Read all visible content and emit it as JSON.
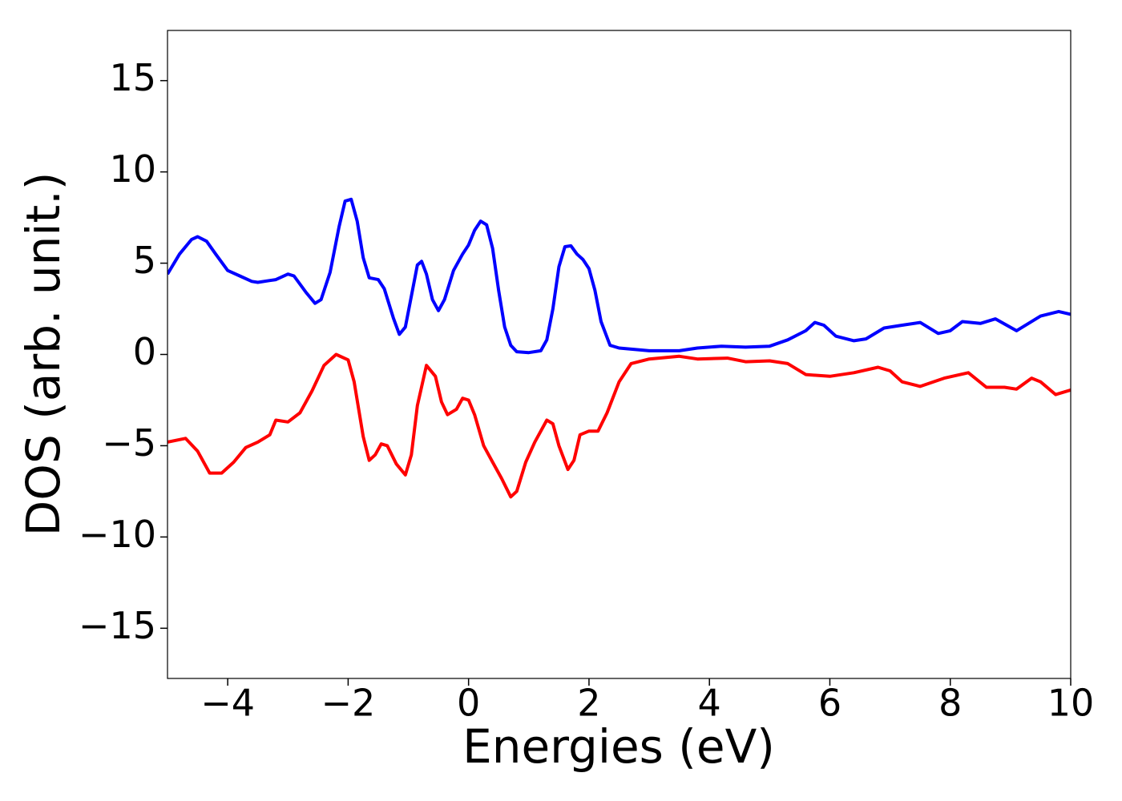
{
  "chart_data": {
    "type": "line",
    "xlabel": "Energies (eV)",
    "ylabel": "DOS (arb. unit.)",
    "xlim": [
      -5,
      10
    ],
    "ylim": [
      -17.75,
      17.75
    ],
    "xticks": [
      {
        "value": -4,
        "label": "−4"
      },
      {
        "value": -2,
        "label": "−2"
      },
      0,
      2,
      4,
      6,
      8,
      10
    ],
    "yticks": [
      {
        "value": -15,
        "label": "−15"
      },
      {
        "value": -10,
        "label": "−10"
      },
      {
        "value": -5,
        "label": "−5"
      },
      0,
      5,
      10,
      15
    ],
    "series": [
      {
        "color": "#0000ff",
        "x": [
          -5,
          -4.8,
          -4.6,
          -4.5,
          -4.35,
          -4.2,
          -4,
          -3.8,
          -3.6,
          -3.5,
          -3.3,
          -3.2,
          -3,
          -2.9,
          -2.7,
          -2.55,
          -2.45,
          -2.3,
          -2.15,
          -2.05,
          -1.95,
          -1.85,
          -1.75,
          -1.65,
          -1.5,
          -1.4,
          -1.25,
          -1.15,
          -1.05,
          -0.95,
          -0.85,
          -0.78,
          -0.7,
          -0.6,
          -0.5,
          -0.4,
          -0.25,
          -0.1,
          0,
          0.1,
          0.2,
          0.3,
          0.4,
          0.5,
          0.6,
          0.7,
          0.8,
          1,
          1.2,
          1.3,
          1.4,
          1.5,
          1.6,
          1.7,
          1.8,
          1.9,
          2,
          2.1,
          2.2,
          2.35,
          2.5,
          3,
          3.5,
          3.8,
          4.2,
          4.6,
          5,
          5.3,
          5.6,
          5.75,
          5.9,
          6.1,
          6.4,
          6.6,
          6.9,
          7.2,
          7.5,
          7.8,
          8,
          8.2,
          8.5,
          8.75,
          9.1,
          9.5,
          9.8,
          10
        ],
        "values": [
          4.4,
          5.5,
          6.3,
          6.45,
          6.2,
          5.5,
          4.6,
          4.3,
          4,
          3.95,
          4.05,
          4.1,
          4.4,
          4.3,
          3.4,
          2.8,
          3,
          4.5,
          7,
          8.4,
          8.5,
          7.3,
          5.3,
          4.2,
          4.1,
          3.6,
          2,
          1.1,
          1.5,
          3.2,
          4.9,
          5.1,
          4.4,
          3,
          2.4,
          3,
          4.6,
          5.5,
          6,
          6.8,
          7.3,
          7.1,
          5.8,
          3.5,
          1.5,
          0.5,
          0.15,
          0.1,
          0.2,
          0.8,
          2.5,
          4.8,
          5.9,
          5.95,
          5.5,
          5.2,
          4.7,
          3.5,
          1.8,
          0.5,
          0.35,
          0.2,
          0.2,
          0.35,
          0.45,
          0.4,
          0.45,
          0.8,
          1.3,
          1.75,
          1.6,
          1,
          0.75,
          0.85,
          1.45,
          1.6,
          1.75,
          1.15,
          1.3,
          1.8,
          1.7,
          1.95,
          1.3,
          2.1,
          2.35,
          2.2
        ]
      },
      {
        "color": "#ff0000",
        "x": [
          -5,
          -4.7,
          -4.5,
          -4.3,
          -4.1,
          -3.9,
          -3.7,
          -3.5,
          -3.3,
          -3.2,
          -3,
          -2.8,
          -2.6,
          -2.4,
          -2.2,
          -2,
          -1.9,
          -1.75,
          -1.65,
          -1.55,
          -1.45,
          -1.35,
          -1.2,
          -1.05,
          -0.95,
          -0.85,
          -0.7,
          -0.55,
          -0.45,
          -0.35,
          -0.2,
          -0.1,
          0,
          0.1,
          0.25,
          0.4,
          0.55,
          0.7,
          0.8,
          0.95,
          1.1,
          1.3,
          1.4,
          1.5,
          1.65,
          1.75,
          1.85,
          2,
          2.15,
          2.3,
          2.5,
          2.7,
          3,
          3.5,
          3.8,
          4.3,
          4.6,
          5,
          5.3,
          5.6,
          6,
          6.4,
          6.8,
          7,
          7.2,
          7.5,
          7.9,
          8.3,
          8.6,
          8.9,
          9.1,
          9.35,
          9.5,
          9.75,
          10
        ],
        "values": [
          -4.8,
          -4.6,
          -5.3,
          -6.5,
          -6.5,
          -5.9,
          -5.1,
          -4.8,
          -4.4,
          -3.6,
          -3.7,
          -3.2,
          -2,
          -0.6,
          0,
          -0.3,
          -1.5,
          -4.5,
          -5.8,
          -5.5,
          -4.9,
          -5,
          -6,
          -6.6,
          -5.5,
          -2.8,
          -0.6,
          -1.2,
          -2.6,
          -3.3,
          -3,
          -2.4,
          -2.5,
          -3.3,
          -5,
          -5.9,
          -6.8,
          -7.8,
          -7.5,
          -5.9,
          -4.8,
          -3.6,
          -3.8,
          -5,
          -6.3,
          -5.8,
          -4.4,
          -4.2,
          -4.2,
          -3.2,
          -1.5,
          -0.5,
          -0.25,
          -0.1,
          -0.25,
          -0.2,
          -0.4,
          -0.35,
          -0.5,
          -1.1,
          -1.2,
          -1,
          -0.7,
          -0.9,
          -1.5,
          -1.75,
          -1.3,
          -1,
          -1.8,
          -1.8,
          -1.9,
          -1.3,
          -1.5,
          -2.2,
          -1.95
        ]
      }
    ]
  }
}
